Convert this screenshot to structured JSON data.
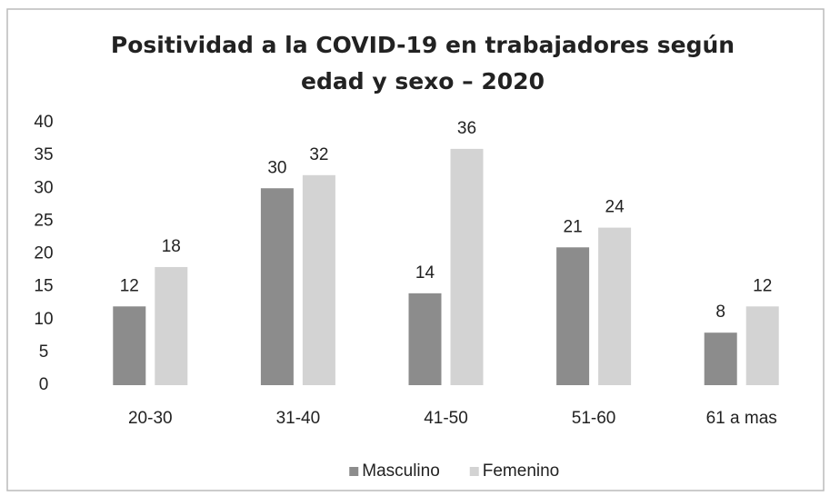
{
  "chart_data": {
    "type": "bar",
    "title": "Positividad a la COVID-19 en trabajadores según edad y sexo – 2020",
    "categories": [
      "20-30",
      "31-40",
      "41-50",
      "51-60",
      "61 a mas"
    ],
    "series": [
      {
        "name": "Masculino",
        "color": "#8c8c8c",
        "values": [
          12,
          30,
          14,
          21,
          8
        ]
      },
      {
        "name": "Femenino",
        "color": "#d3d3d3",
        "values": [
          18,
          32,
          36,
          24,
          12
        ]
      }
    ],
    "ylim": [
      0,
      40
    ],
    "yticks": [
      0,
      5,
      10,
      15,
      20,
      25,
      30,
      35,
      40
    ],
    "grid": false,
    "legend": "bottom"
  }
}
